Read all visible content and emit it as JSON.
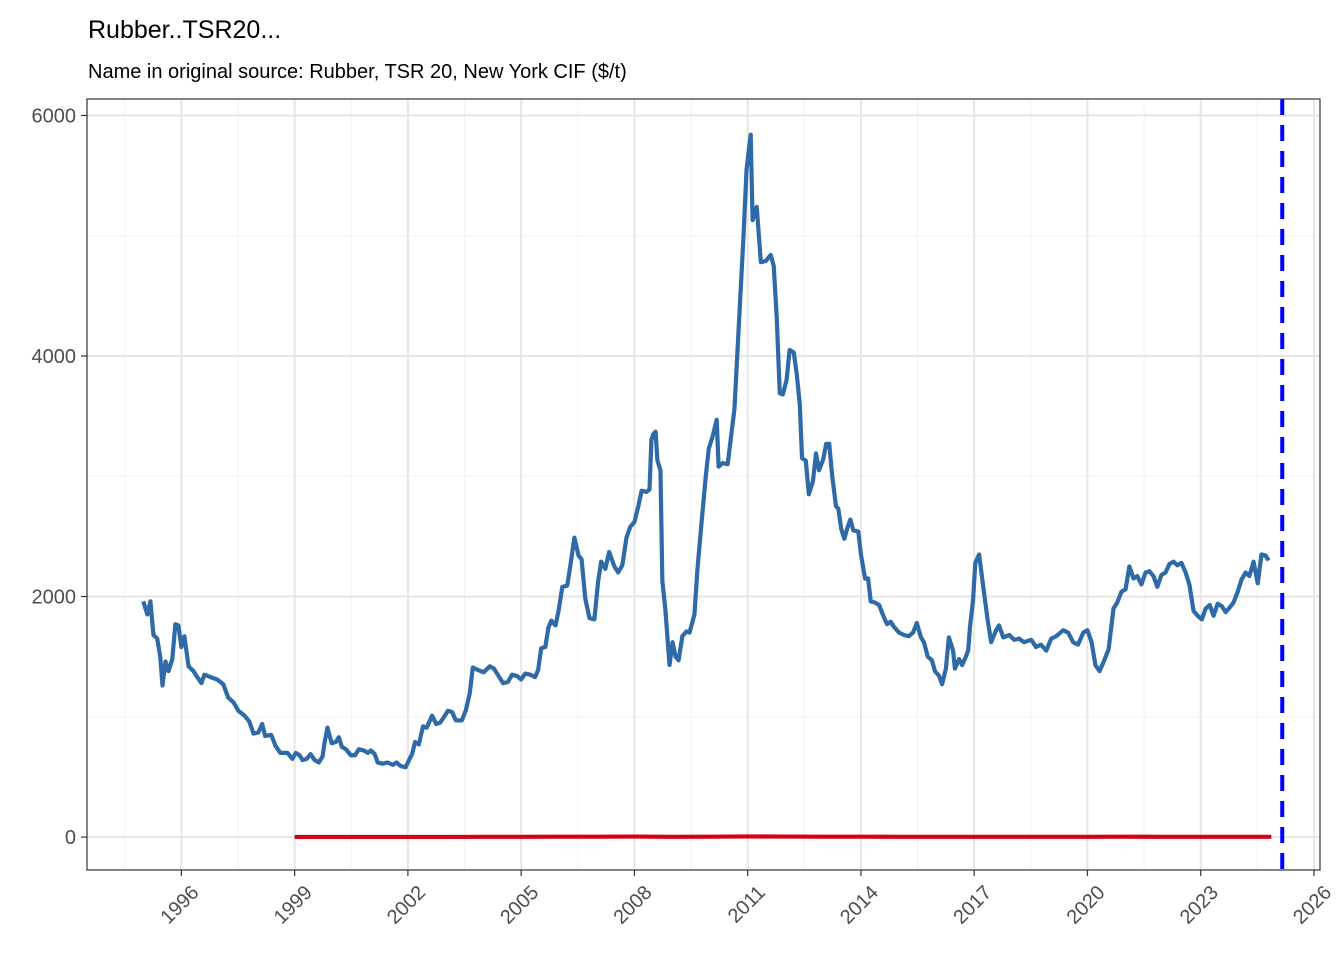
{
  "chart_data": {
    "type": "line",
    "title": "Rubber..TSR20...",
    "subtitle": "Name in original source: Rubber, TSR 20, New York CIF ($/t)",
    "xlim": [
      1993.5,
      2026.16
    ],
    "ylim": [
      -274,
      6137
    ],
    "xticks": [
      1996,
      1999,
      2002,
      2005,
      2008,
      2011,
      2014,
      2017,
      2020,
      2023,
      2026
    ],
    "yticks": [
      0,
      2000,
      4000,
      6000
    ],
    "grid": true,
    "minor_grid": true,
    "vline": {
      "x": 2025.16,
      "color": "#0000ff",
      "dash": true
    },
    "series": [
      {
        "color": "#2f6aa8",
        "x": [
          1994.99,
          1995.1,
          1995.18,
          1995.26,
          1995.36,
          1995.44,
          1995.5,
          1995.58,
          1995.66,
          1995.76,
          1995.84,
          1995.92,
          1996.0,
          1996.08,
          1996.19,
          1996.32,
          1996.42,
          1996.53,
          1996.61,
          1996.77,
          1996.95,
          1997.11,
          1997.24,
          1997.38,
          1997.51,
          1997.67,
          1997.8,
          1997.91,
          1998.04,
          1998.14,
          1998.22,
          1998.38,
          1998.49,
          1998.62,
          1998.81,
          1998.94,
          1999.03,
          1999.13,
          1999.21,
          1999.32,
          1999.42,
          1999.53,
          1999.64,
          1999.74,
          1999.79,
          1999.87,
          1999.98,
          2000.09,
          2000.17,
          2000.25,
          2000.36,
          2000.49,
          2000.6,
          2000.7,
          2000.83,
          2000.94,
          2001.02,
          2001.12,
          2001.2,
          2001.33,
          2001.46,
          2001.6,
          2001.7,
          2001.81,
          2001.94,
          2002.0,
          2002.11,
          2002.19,
          2002.29,
          2002.4,
          2002.5,
          2002.64,
          2002.75,
          2002.85,
          2002.96,
          2003.06,
          2003.17,
          2003.27,
          2003.43,
          2003.54,
          2003.64,
          2003.72,
          2003.85,
          2004.01,
          2004.17,
          2004.28,
          2004.38,
          2004.52,
          2004.65,
          2004.76,
          2004.89,
          2005.0,
          2005.11,
          2005.24,
          2005.37,
          2005.45,
          2005.53,
          2005.64,
          2005.72,
          2005.8,
          2005.91,
          2005.99,
          2006.09,
          2006.22,
          2006.3,
          2006.41,
          2006.52,
          2006.6,
          2006.7,
          2006.81,
          2006.94,
          2007.04,
          2007.12,
          2007.23,
          2007.33,
          2007.47,
          2007.57,
          2007.68,
          2007.79,
          2007.89,
          2008.0,
          2008.11,
          2008.19,
          2008.32,
          2008.4,
          2008.45,
          2008.5,
          2008.56,
          2008.61,
          2008.69,
          2008.74,
          2008.82,
          2008.93,
          2009.01,
          2009.09,
          2009.17,
          2009.27,
          2009.38,
          2009.46,
          2009.59,
          2009.67,
          2009.78,
          2009.89,
          2009.97,
          2010.07,
          2010.18,
          2010.23,
          2010.34,
          2010.47,
          2010.65,
          2010.79,
          2010.89,
          2010.97,
          2011.08,
          2011.13,
          2011.24,
          2011.35,
          2011.48,
          2011.61,
          2011.69,
          2011.77,
          2011.85,
          2011.93,
          2012.03,
          2012.11,
          2012.22,
          2012.3,
          2012.38,
          2012.44,
          2012.54,
          2012.62,
          2012.73,
          2012.81,
          2012.89,
          2013.0,
          2013.08,
          2013.16,
          2013.24,
          2013.34,
          2013.4,
          2013.48,
          2013.56,
          2013.64,
          2013.72,
          2013.8,
          2013.93,
          2014.0,
          2014.11,
          2014.19,
          2014.26,
          2014.37,
          2014.48,
          2014.58,
          2014.69,
          2014.79,
          2014.87,
          2015.01,
          2015.14,
          2015.27,
          2015.38,
          2015.48,
          2015.59,
          2015.67,
          2015.77,
          2015.88,
          2015.96,
          2016.07,
          2016.15,
          2016.25,
          2016.33,
          2016.44,
          2016.49,
          2016.6,
          2016.68,
          2016.78,
          2016.84,
          2016.89,
          2016.97,
          2017.03,
          2017.13,
          2017.24,
          2017.35,
          2017.45,
          2017.58,
          2017.66,
          2017.77,
          2017.93,
          2018.06,
          2018.19,
          2018.32,
          2018.51,
          2018.64,
          2018.77,
          2018.91,
          2019.04,
          2019.17,
          2019.36,
          2019.49,
          2019.62,
          2019.75,
          2019.89,
          2020.0,
          2020.11,
          2020.21,
          2020.32,
          2020.42,
          2020.56,
          2020.69,
          2020.79,
          2020.9,
          2021.01,
          2021.11,
          2021.22,
          2021.32,
          2021.43,
          2021.54,
          2021.64,
          2021.75,
          2021.85,
          2021.96,
          2022.07,
          2022.17,
          2022.28,
          2022.38,
          2022.49,
          2022.6,
          2022.7,
          2022.81,
          2022.92,
          2023.03,
          2023.13,
          2023.24,
          2023.34,
          2023.45,
          2023.56,
          2023.66,
          2023.77,
          2023.87,
          2023.98,
          2024.08,
          2024.19,
          2024.29,
          2024.4,
          2024.51,
          2024.61,
          2024.72,
          2024.8
        ],
        "values": [
          1960,
          1850,
          1960,
          1680,
          1650,
          1500,
          1260,
          1460,
          1380,
          1480,
          1770,
          1760,
          1580,
          1670,
          1420,
          1380,
          1330,
          1280,
          1350,
          1330,
          1310,
          1270,
          1160,
          1120,
          1050,
          1010,
          960,
          860,
          870,
          940,
          840,
          850,
          760,
          700,
          700,
          650,
          700,
          680,
          640,
          650,
          690,
          640,
          620,
          670,
          780,
          910,
          780,
          790,
          830,
          750,
          730,
          680,
          680,
          730,
          720,
          700,
          720,
          690,
          620,
          610,
          620,
          600,
          620,
          590,
          580,
          620,
          690,
          790,
          770,
          920,
          910,
          1010,
          940,
          950,
          1000,
          1050,
          1040,
          970,
          970,
          1060,
          1200,
          1410,
          1390,
          1370,
          1420,
          1400,
          1350,
          1280,
          1290,
          1350,
          1340,
          1310,
          1360,
          1350,
          1330,
          1390,
          1570,
          1580,
          1740,
          1800,
          1760,
          1880,
          2080,
          2090,
          2250,
          2490,
          2340,
          2310,
          1980,
          1820,
          1810,
          2130,
          2290,
          2230,
          2370,
          2250,
          2200,
          2260,
          2490,
          2580,
          2620,
          2760,
          2880,
          2870,
          2890,
          3300,
          3350,
          3370,
          3130,
          3050,
          2130,
          1890,
          1430,
          1620,
          1500,
          1470,
          1670,
          1710,
          1700,
          1850,
          2230,
          2620,
          3000,
          3230,
          3330,
          3470,
          3080,
          3110,
          3100,
          3560,
          4400,
          5000,
          5550,
          5840,
          5130,
          5240,
          4780,
          4790,
          4840,
          4750,
          4320,
          3690,
          3680,
          3800,
          4050,
          4030,
          3850,
          3600,
          3150,
          3130,
          2850,
          2960,
          3190,
          3050,
          3140,
          3270,
          3270,
          3000,
          2750,
          2730,
          2560,
          2480,
          2570,
          2640,
          2550,
          2540,
          2350,
          2150,
          2150,
          1960,
          1950,
          1930,
          1850,
          1770,
          1790,
          1750,
          1700,
          1680,
          1670,
          1700,
          1780,
          1660,
          1620,
          1500,
          1470,
          1380,
          1340,
          1270,
          1400,
          1660,
          1550,
          1400,
          1480,
          1430,
          1500,
          1550,
          1750,
          1970,
          2280,
          2350,
          2080,
          1820,
          1620,
          1720,
          1760,
          1660,
          1680,
          1640,
          1650,
          1620,
          1640,
          1580,
          1600,
          1550,
          1650,
          1670,
          1720,
          1700,
          1620,
          1600,
          1700,
          1720,
          1620,
          1430,
          1380,
          1450,
          1560,
          1900,
          1950,
          2040,
          2060,
          2250,
          2150,
          2170,
          2100,
          2200,
          2210,
          2170,
          2080,
          2180,
          2200,
          2270,
          2290,
          2260,
          2280,
          2200,
          2100,
          1880,
          1840,
          1810,
          1900,
          1930,
          1840,
          1940,
          1920,
          1870,
          1910,
          1950,
          2040,
          2140,
          2200,
          2170,
          2290,
          2110,
          2350,
          2340,
          2300
        ]
      },
      {
        "color": "#d7001a",
        "x": [
          1999.0,
          2000.0,
          2001.0,
          2002.0,
          2003.0,
          2004.0,
          2005.0,
          2006.0,
          2007.0,
          2008.0,
          2009.0,
          2010.0,
          2011.0,
          2012.0,
          2013.0,
          2014.0,
          2015.0,
          2016.0,
          2017.0,
          2018.0,
          2019.0,
          2020.0,
          2021.0,
          2022.0,
          2023.0,
          2024.0,
          2024.87
        ],
        "values": [
          1,
          1,
          1,
          1,
          1,
          2,
          2,
          3,
          3,
          4,
          2,
          3,
          5,
          4,
          3,
          3,
          2,
          2,
          2,
          2,
          2,
          2,
          3,
          2,
          2,
          2,
          2
        ]
      }
    ]
  }
}
